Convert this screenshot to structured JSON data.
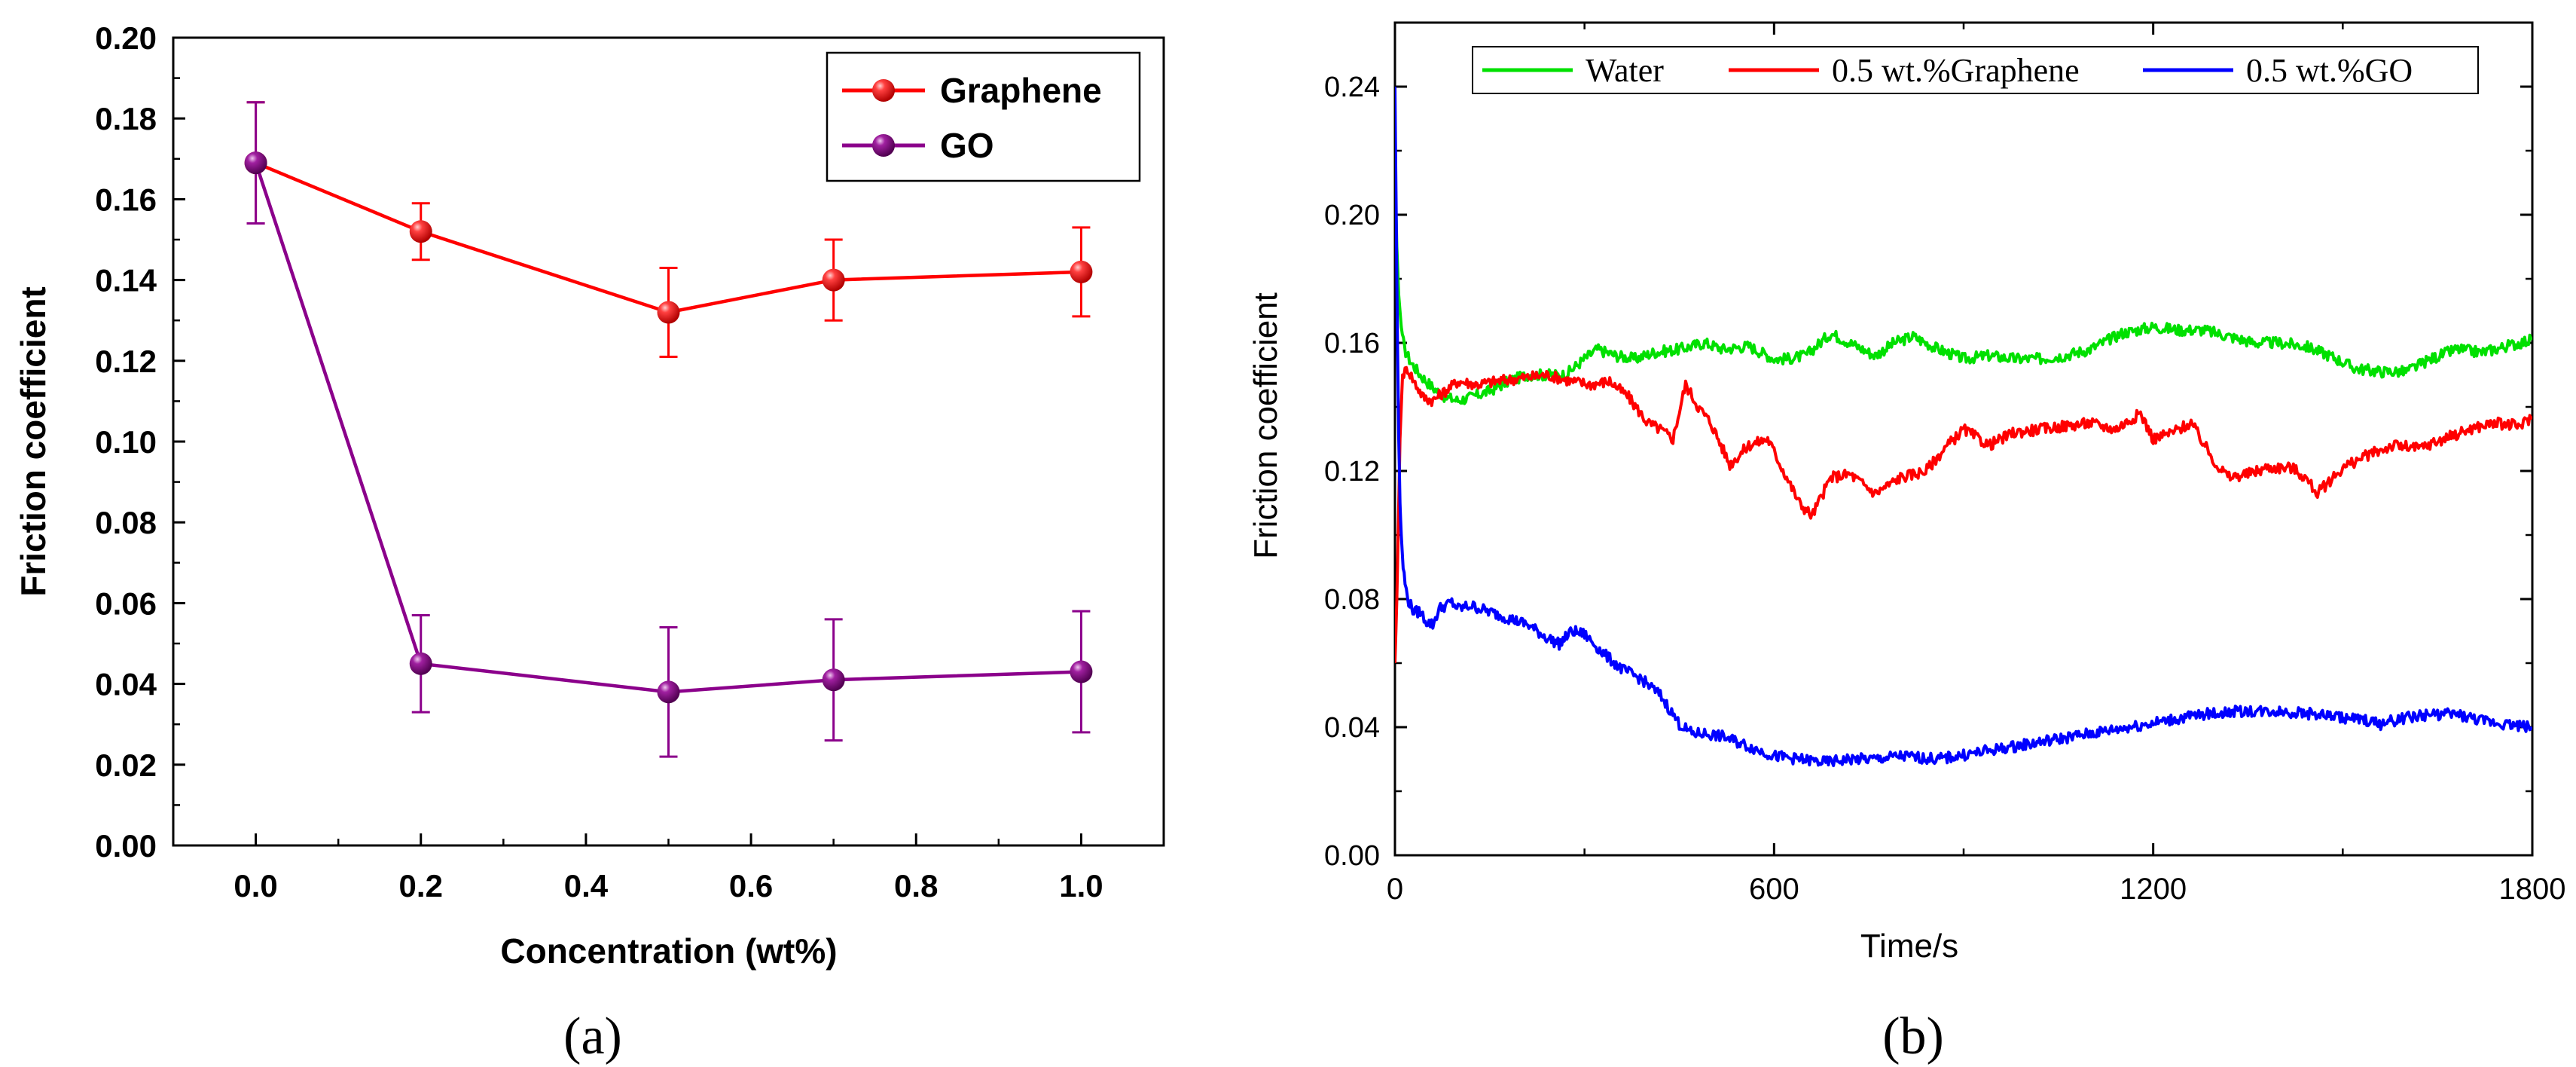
{
  "chart_data": [
    {
      "type": "line",
      "panel_label": "(a)",
      "title": "",
      "xlabel": "Concentration (wt%)",
      "ylabel": "Friction coefficient",
      "xlim": [
        -0.1,
        1.1
      ],
      "ylim": [
        0.0,
        0.2
      ],
      "x_ticks": [
        "0.0",
        "0.2",
        "0.4",
        "0.6",
        "0.8",
        "1.0"
      ],
      "y_ticks": [
        "0.00",
        "0.02",
        "0.04",
        "0.06",
        "0.08",
        "0.10",
        "0.12",
        "0.14",
        "0.16",
        "0.18",
        "0.20"
      ],
      "legend_position": "top-right",
      "x": [
        0.0,
        0.2,
        0.5,
        0.7,
        1.0
      ],
      "series": [
        {
          "name": "Graphene",
          "color": "#ff0000",
          "values": [
            0.169,
            0.152,
            0.132,
            0.14,
            0.142
          ],
          "errors": [
            0.015,
            0.007,
            0.011,
            0.01,
            0.011
          ]
        },
        {
          "name": "GO",
          "color": "#8b008b",
          "values": [
            0.169,
            0.045,
            0.038,
            0.041,
            0.043
          ],
          "errors": [
            0.015,
            0.012,
            0.016,
            0.015,
            0.015
          ]
        }
      ]
    },
    {
      "type": "line",
      "panel_label": "(b)",
      "title": "",
      "xlabel": "Time/s",
      "ylabel": "Friction coefficient",
      "xlim": [
        0,
        1800
      ],
      "ylim": [
        0.0,
        0.26
      ],
      "x_ticks": [
        "0",
        "600",
        "1200",
        "1800"
      ],
      "y_ticks": [
        "0.00",
        "0.04",
        "0.08",
        "0.12",
        "0.16",
        "0.20",
        "0.24"
      ],
      "legend_position": "top",
      "series": [
        {
          "name": "Water",
          "color": "#00e000",
          "x": [
            0,
            3,
            6,
            10,
            15,
            25,
            40,
            60,
            80,
            100,
            120,
            150,
            180,
            210,
            240,
            270,
            300,
            320,
            350,
            380,
            410,
            450,
            490,
            520,
            560,
            600,
            620,
            650,
            690,
            720,
            760,
            790,
            820,
            860,
            900,
            940,
            980,
            1020,
            1060,
            1100,
            1150,
            1200,
            1240,
            1280,
            1320,
            1360,
            1400,
            1440,
            1480,
            1520,
            1560,
            1600,
            1640,
            1680,
            1720,
            1760,
            1800
          ],
          "y": [
            0.215,
            0.19,
            0.175,
            0.165,
            0.158,
            0.154,
            0.15,
            0.146,
            0.143,
            0.142,
            0.143,
            0.145,
            0.148,
            0.15,
            0.15,
            0.15,
            0.155,
            0.158,
            0.156,
            0.155,
            0.157,
            0.158,
            0.16,
            0.158,
            0.159,
            0.155,
            0.155,
            0.156,
            0.163,
            0.16,
            0.156,
            0.16,
            0.162,
            0.158,
            0.155,
            0.156,
            0.155,
            0.155,
            0.156,
            0.158,
            0.163,
            0.165,
            0.164,
            0.164,
            0.162,
            0.16,
            0.16,
            0.159,
            0.156,
            0.152,
            0.151,
            0.151,
            0.155,
            0.158,
            0.157,
            0.159,
            0.161
          ]
        },
        {
          "name": "0.5 wt.%Graphene",
          "color": "#ff0000",
          "x": [
            0,
            3,
            5,
            8,
            12,
            20,
            30,
            45,
            60,
            80,
            100,
            130,
            160,
            200,
            240,
            280,
            310,
            340,
            370,
            400,
            420,
            440,
            460,
            480,
            500,
            530,
            560,
            590,
            620,
            640,
            660,
            690,
            720,
            760,
            800,
            840,
            870,
            900,
            940,
            980,
            1020,
            1060,
            1100,
            1140,
            1180,
            1200,
            1230,
            1260,
            1300,
            1320,
            1350,
            1380,
            1420,
            1440,
            1460,
            1500,
            1540,
            1580,
            1620,
            1660,
            1700,
            1740,
            1780,
            1800
          ],
          "y": [
            0.06,
            0.08,
            0.1,
            0.13,
            0.15,
            0.152,
            0.148,
            0.143,
            0.142,
            0.145,
            0.148,
            0.147,
            0.148,
            0.149,
            0.15,
            0.148,
            0.147,
            0.148,
            0.143,
            0.135,
            0.133,
            0.13,
            0.147,
            0.14,
            0.135,
            0.122,
            0.128,
            0.13,
            0.118,
            0.11,
            0.106,
            0.118,
            0.119,
            0.113,
            0.118,
            0.12,
            0.127,
            0.133,
            0.128,
            0.132,
            0.133,
            0.134,
            0.135,
            0.133,
            0.138,
            0.13,
            0.132,
            0.135,
            0.122,
            0.118,
            0.119,
            0.121,
            0.121,
            0.118,
            0.113,
            0.121,
            0.125,
            0.128,
            0.127,
            0.13,
            0.133,
            0.135,
            0.134,
            0.137
          ]
        },
        {
          "name": "0.5 wt.%GO",
          "color": "#0000ff",
          "x": [
            0,
            2,
            4,
            6,
            8,
            10,
            13,
            16,
            20,
            25,
            30,
            40,
            50,
            60,
            70,
            80,
            90,
            100,
            120,
            150,
            180,
            210,
            240,
            260,
            280,
            300,
            330,
            360,
            390,
            420,
            450,
            470,
            490,
            520,
            560,
            600,
            640,
            680,
            720,
            760,
            800,
            860,
            920,
            980,
            1040,
            1100,
            1160,
            1220,
            1280,
            1340,
            1400,
            1460,
            1500,
            1540,
            1560,
            1600,
            1640,
            1680,
            1720,
            1760,
            1800
          ],
          "y": [
            0.24,
            0.2,
            0.16,
            0.13,
            0.11,
            0.1,
            0.09,
            0.085,
            0.08,
            0.078,
            0.076,
            0.076,
            0.073,
            0.072,
            0.077,
            0.078,
            0.079,
            0.077,
            0.078,
            0.076,
            0.074,
            0.072,
            0.068,
            0.066,
            0.07,
            0.069,
            0.063,
            0.058,
            0.055,
            0.05,
            0.041,
            0.038,
            0.038,
            0.037,
            0.034,
            0.031,
            0.03,
            0.029,
            0.03,
            0.03,
            0.031,
            0.03,
            0.032,
            0.034,
            0.036,
            0.038,
            0.04,
            0.042,
            0.044,
            0.045,
            0.045,
            0.044,
            0.043,
            0.042,
            0.041,
            0.043,
            0.044,
            0.044,
            0.042,
            0.041,
            0.04
          ]
        }
      ]
    }
  ]
}
